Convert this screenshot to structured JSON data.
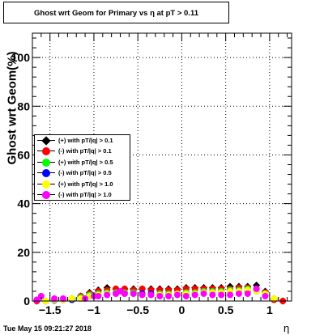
{
  "title": "Ghost wrt Geom for Primary vs   η at pT > 0.11",
  "timestamp": "Tue May 15 09:21:27 2018",
  "chart_data": {
    "type": "scatter",
    "title": "Ghost wrt Geom for Primary vs   η at pT > 0.11",
    "xlabel": "η",
    "ylabel": "Ghost wrt Geom(%)",
    "xlim": [
      -1.7,
      1.25
    ],
    "ylim": [
      0,
      110
    ],
    "grid": true,
    "legend_position": "left-middle",
    "x_ticks": [
      -1.5,
      -1,
      -0.5,
      0,
      0.5,
      1
    ],
    "x_tick_labels": [
      "−1.5",
      "−1",
      "−0.5",
      "0",
      "0.5",
      "1"
    ],
    "y_ticks": [
      0,
      20,
      40,
      60,
      80,
      100
    ],
    "y_tick_labels": [
      "0",
      "20",
      "40",
      "60",
      "80",
      "100"
    ],
    "series": [
      {
        "name": "(+) with pT/|q| > 0.1",
        "color": "#000000",
        "marker": "diamond",
        "x": [
          -1.65,
          -1.55,
          -1.45,
          -1.35,
          -1.25,
          -1.15,
          -1.05,
          -0.95,
          -0.85,
          -0.75,
          -0.65,
          -0.55,
          -0.45,
          -0.35,
          -0.25,
          -0.15,
          -0.05,
          0.05,
          0.15,
          0.25,
          0.35,
          0.45,
          0.55,
          0.65,
          0.75,
          0.85,
          0.95,
          1.05,
          1.15
        ],
        "y": [
          0,
          0,
          0.3,
          0.5,
          1,
          2,
          3.5,
          4.5,
          5.5,
          5,
          5,
          5,
          5,
          5,
          5,
          5,
          5,
          5.5,
          5.5,
          5.5,
          5.5,
          5.5,
          6,
          6,
          6,
          6.5,
          4,
          1,
          0
        ]
      },
      {
        "name": "(-) with pT/|q| > 0.1",
        "color": "#ff0000",
        "marker": "circle",
        "x": [
          -1.65,
          -1.55,
          -1.45,
          -1.35,
          -1.25,
          -1.15,
          -1.05,
          -0.95,
          -0.85,
          -0.75,
          -0.65,
          -0.55,
          -0.45,
          -0.35,
          -0.25,
          -0.15,
          -0.05,
          0.05,
          0.15,
          0.25,
          0.35,
          0.45,
          0.55,
          0.65,
          0.75,
          0.85,
          0.95,
          1.05,
          1.15
        ],
        "y": [
          0,
          0,
          0.3,
          0.5,
          1,
          2,
          3,
          4,
          4.5,
          5,
          5,
          4.5,
          5,
          4.5,
          4.5,
          4.5,
          4.5,
          5,
          5,
          5,
          5,
          5,
          5,
          5.5,
          5.5,
          5,
          3.5,
          0.5,
          0
        ]
      },
      {
        "name": "(+) with pT/|q| > 0.5",
        "color": "#00ff00",
        "marker": "circle",
        "x": [
          -1.55,
          -1.45,
          -1.35,
          -1.25,
          -1.15,
          -1.05,
          -0.95,
          -0.85,
          -0.75,
          -0.65,
          -0.55,
          -0.45,
          -0.35,
          -0.25,
          -0.15,
          -0.05,
          0.05,
          0.15,
          0.25,
          0.35,
          0.45,
          0.55,
          0.65,
          0.75,
          0.85,
          0.95
        ],
        "y": [
          0,
          0.3,
          0.5,
          1,
          1.5,
          2.5,
          3,
          3.5,
          3.5,
          3.5,
          3.5,
          3,
          3,
          3,
          3,
          3,
          3.5,
          3.5,
          4,
          4,
          4,
          4.5,
          4.5,
          5,
          4.5,
          3
        ]
      },
      {
        "name": "(-) with pT/|q| > 0.5",
        "color": "#0000ff",
        "marker": "circle",
        "x": [
          -1.45,
          -1.35,
          -1.25,
          -1.15,
          -1.05,
          -0.95,
          -0.85,
          -0.75,
          -0.65,
          -0.55,
          -0.45,
          -0.35,
          -0.25,
          -0.15,
          -0.05,
          0.05,
          0.15,
          0.25,
          0.35,
          0.45,
          0.55,
          0.65,
          0.75,
          0.85,
          0.95
        ],
        "y": [
          0.3,
          0.5,
          0.5,
          1,
          2,
          2.5,
          3,
          3,
          3,
          3,
          3,
          3,
          2.5,
          2.5,
          3,
          3,
          3,
          3.5,
          3.5,
          3.5,
          4,
          4,
          4,
          4,
          2.5
        ]
      },
      {
        "name": "(+) with pT/|q| > 1.0",
        "color": "#ffff00",
        "marker": "circle",
        "x": [
          -1.55,
          -1.45,
          -1.35,
          -1.25,
          -1.15,
          -1.05,
          -0.95,
          -0.85,
          -0.75,
          -0.65,
          -0.55,
          -0.45,
          -0.35,
          -0.25,
          -0.15,
          -0.05,
          0.05,
          0.15,
          0.25,
          0.35,
          0.45,
          0.55,
          0.65,
          0.75,
          0.85,
          0.95,
          1.05
        ],
        "y": [
          0,
          0.5,
          0.5,
          1,
          1,
          2,
          2.5,
          3,
          3,
          3,
          3,
          2.5,
          2.5,
          2.5,
          2.5,
          3,
          3,
          3,
          3.5,
          3.5,
          3.5,
          4,
          4,
          4.5,
          4,
          3,
          1
        ]
      },
      {
        "name": "(-) with pT/|q| > 1.0",
        "color": "#ff00ff",
        "marker": "circle",
        "x": [
          -1.65,
          -1.6,
          -1.45,
          -1.35,
          -1.1,
          -1.0,
          -0.95,
          -0.85,
          -0.75,
          -0.7,
          -0.65,
          -0.55,
          -0.45,
          -0.35,
          -0.25,
          -0.15,
          -0.05,
          0.05,
          0.15,
          0.25,
          0.35,
          0.45,
          0.55,
          0.65,
          0.75,
          0.85,
          0.95
        ],
        "y": [
          0.5,
          2,
          1,
          1,
          1,
          2,
          2,
          2.5,
          3,
          4,
          3,
          3,
          2.5,
          2.5,
          2,
          2,
          2.5,
          2,
          2.5,
          3,
          2.5,
          2.5,
          2.5,
          3,
          3,
          5,
          2
        ]
      }
    ]
  }
}
